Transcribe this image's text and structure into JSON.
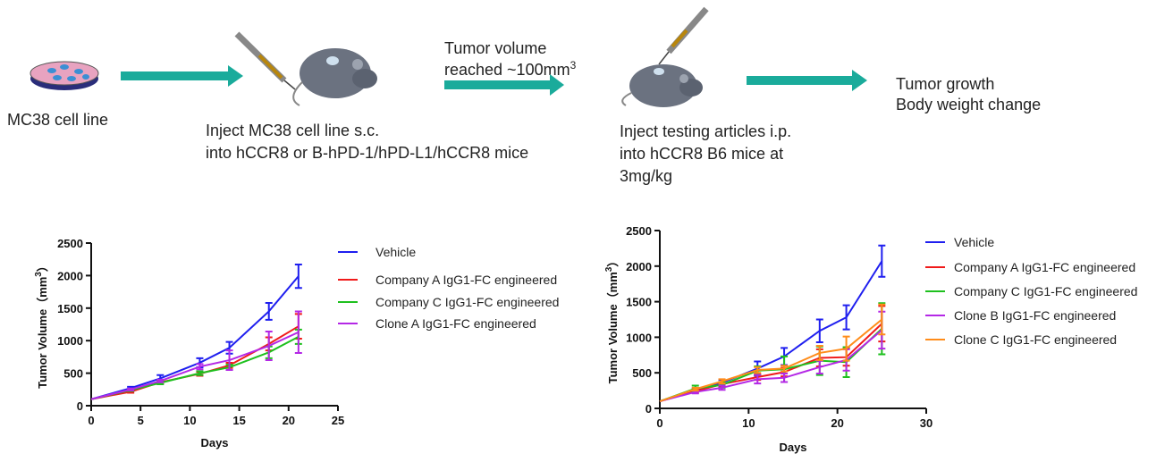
{
  "workflow": {
    "step1_label": "MC38 cell line",
    "step2_line1": "Inject MC38 cell line s.c.",
    "step2_line2": "into hCCR8 or B-hPD-1/hPD-L1/hCCR8 mice",
    "step3_line1": "Tumor  volume",
    "step3_line2": "reached ~100mm",
    "step3_sup": "3",
    "step4_line1": "Inject testing articles i.p.",
    "step4_line2": "into hCCR8 B6 mice at",
    "step4_line3": "3mg/kg",
    "step5_line1": "Tumor growth",
    "step5_line2": "Body weight change",
    "arrow_color": "#1aab9b"
  },
  "chart_data": [
    {
      "type": "line",
      "xlabel": "Days",
      "ylabel": "Tumor Volume（mm",
      "ylabel_sup": "3",
      "ylabel_close": "）",
      "xlim": [
        0,
        25
      ],
      "ylim": [
        0,
        2500
      ],
      "xticks": [
        0,
        5,
        10,
        15,
        20,
        25
      ],
      "yticks": [
        0,
        500,
        1000,
        1500,
        2000,
        2500
      ],
      "legend": "right",
      "x": [
        0,
        4,
        7,
        11,
        14,
        18,
        21
      ],
      "series": [
        {
          "name": "Vehicle",
          "color": "#1f1fef",
          "values": [
            100,
            270,
            420,
            660,
            890,
            1450,
            1990
          ],
          "error": [
            0,
            20,
            50,
            70,
            90,
            130,
            180
          ]
        },
        {
          "name": "Company A IgG1-FC engineered",
          "color": "#f01a1a",
          "values": [
            100,
            215,
            360,
            490,
            620,
            950,
            1220
          ],
          "error": [
            0,
            15,
            20,
            30,
            40,
            100,
            190
          ]
        },
        {
          "name": "Company C IgG1-FC engineered",
          "color": "#1ec01e",
          "values": [
            100,
            240,
            350,
            500,
            590,
            820,
            1060
          ],
          "error": [
            0,
            15,
            20,
            30,
            40,
            90,
            110
          ]
        },
        {
          "name": "Clone A IgG1-FC engineered",
          "color": "#b428e6",
          "values": [
            100,
            250,
            380,
            600,
            700,
            920,
            1130
          ],
          "error": [
            0,
            15,
            20,
            40,
            150,
            220,
            320
          ]
        }
      ]
    },
    {
      "type": "line",
      "xlabel": "Days",
      "ylabel": "Tumor Volume（mm",
      "ylabel_sup": "3",
      "ylabel_close": "）",
      "xlim": [
        0,
        30
      ],
      "ylim": [
        0,
        2500
      ],
      "xticks": [
        0,
        10,
        20,
        30
      ],
      "yticks": [
        0,
        500,
        1000,
        1500,
        2000,
        2500
      ],
      "legend": "right",
      "x": [
        0,
        4,
        7,
        11,
        14,
        18,
        21,
        25
      ],
      "series": [
        {
          "name": "Vehicle",
          "color": "#1f1fef",
          "values": [
            100,
            260,
            360,
            560,
            730,
            1090,
            1280,
            2070
          ],
          "error": [
            0,
            20,
            40,
            100,
            120,
            160,
            170,
            220
          ]
        },
        {
          "name": "Company A IgG1-FC engineered",
          "color": "#f01a1a",
          "values": [
            100,
            240,
            340,
            440,
            510,
            710,
            720,
            1190
          ],
          "error": [
            0,
            20,
            30,
            40,
            60,
            120,
            120,
            250
          ]
        },
        {
          "name": "Company C IgG1-FC engineered",
          "color": "#1ec01e",
          "values": [
            100,
            280,
            330,
            530,
            550,
            670,
            650,
            1120
          ],
          "error": [
            0,
            40,
            40,
            60,
            180,
            200,
            210,
            360
          ]
        },
        {
          "name": "Clone B IgG1-FC engineered",
          "color": "#b428e6",
          "values": [
            100,
            230,
            290,
            410,
            430,
            580,
            680,
            1100
          ],
          "error": [
            0,
            20,
            30,
            60,
            60,
            90,
            150,
            260
          ]
        },
        {
          "name": "Clone C IgG1-FC engineered",
          "color": "#ff8c1a",
          "values": [
            100,
            270,
            380,
            540,
            560,
            780,
            840,
            1250
          ],
          "error": [
            0,
            20,
            30,
            40,
            40,
            100,
            170,
            210
          ]
        }
      ]
    }
  ]
}
